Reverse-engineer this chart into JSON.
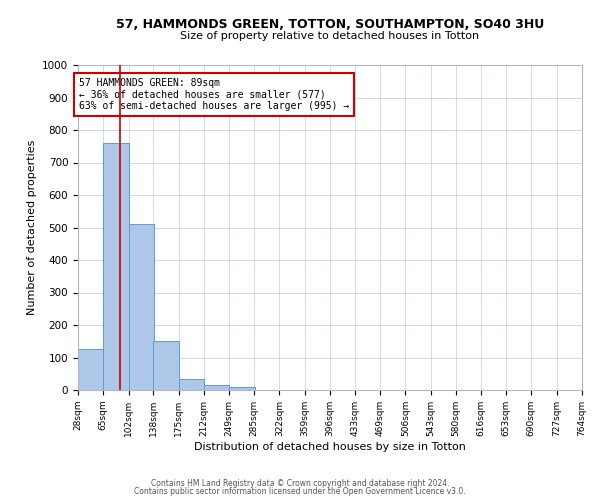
{
  "title_line1": "57, HAMMONDS GREEN, TOTTON, SOUTHAMPTON, SO40 3HU",
  "title_line2": "Size of property relative to detached houses in Totton",
  "xlabel": "Distribution of detached houses by size in Totton",
  "ylabel": "Number of detached properties",
  "footnote_line1": "Contains HM Land Registry data © Crown copyright and database right 2024.",
  "footnote_line2": "Contains public sector information licensed under the Open Government Licence v3.0.",
  "annotation_line1": "57 HAMMONDS GREEN: 89sqm",
  "annotation_line2": "← 36% of detached houses are smaller (577)",
  "annotation_line3": "63% of semi-detached houses are larger (995) →",
  "property_size": 89,
  "bin_edges": [
    28,
    65,
    102,
    138,
    175,
    212,
    249,
    285,
    322,
    359,
    396,
    433,
    469,
    506,
    543,
    580,
    616,
    653,
    690,
    727,
    764
  ],
  "bar_heights": [
    125,
    760,
    510,
    150,
    35,
    15,
    8,
    0,
    0,
    0,
    0,
    0,
    0,
    0,
    0,
    0,
    0,
    0,
    0,
    0
  ],
  "bar_color": "#aec6e8",
  "bar_edge_color": "#5b9bd5",
  "red_line_color": "#cc0000",
  "annotation_box_edge_color": "#cc0000",
  "background_color": "#ffffff",
  "grid_color": "#c8d4e3",
  "ylim": [
    0,
    1000
  ],
  "yticks": [
    0,
    100,
    200,
    300,
    400,
    500,
    600,
    700,
    800,
    900,
    1000
  ],
  "figsize": [
    6.0,
    5.0
  ],
  "dpi": 100
}
